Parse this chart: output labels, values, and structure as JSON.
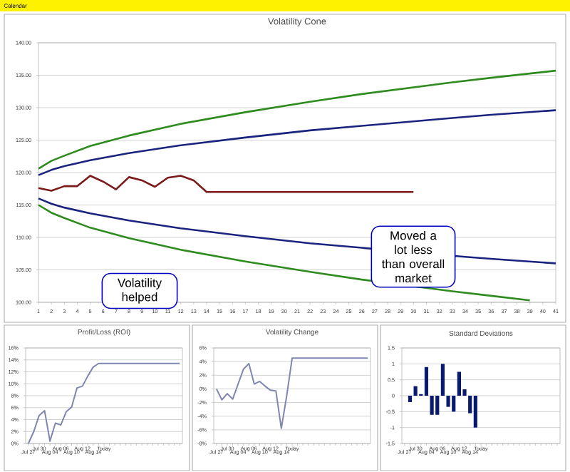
{
  "chart_data": [
    {
      "type": "line",
      "title": "Volatility Cone",
      "annotations": [
        "Calendar"
      ],
      "xlim": [
        1,
        41
      ],
      "xticks": [
        1,
        2,
        3,
        4,
        5,
        6,
        7,
        8,
        9,
        10,
        11,
        12,
        13,
        14,
        15,
        16,
        17,
        18,
        19,
        20,
        21,
        22,
        23,
        24,
        25,
        26,
        27,
        28,
        29,
        30,
        31,
        32,
        33,
        34,
        35,
        36,
        37,
        38,
        39,
        40,
        41
      ],
      "ylim": [
        100,
        140
      ],
      "yticks": [
        {
          "value": 100,
          "label": "100.00"
        },
        {
          "value": 105,
          "label": "105.00"
        },
        {
          "value": 110,
          "label": "110.00"
        },
        {
          "value": 115,
          "label": "115.00"
        },
        {
          "value": 120,
          "label": "120.00"
        },
        {
          "value": 125,
          "label": "125.00"
        },
        {
          "value": 130,
          "label": "130.00"
        },
        {
          "value": 135,
          "label": "135.00"
        },
        {
          "value": 140,
          "label": "140.00"
        }
      ],
      "grid": "y",
      "series": [
        {
          "color": "#2e8b1e",
          "x": [
            1,
            2,
            3,
            5,
            8,
            12,
            17,
            22,
            26,
            33,
            36,
            41
          ],
          "values": [
            120.6,
            121.8,
            122.6,
            124.1,
            125.7,
            127.5,
            129.3,
            130.9,
            132.1,
            133.9,
            134.6,
            135.7
          ]
        },
        {
          "color": "#1a237e",
          "x": [
            1,
            2,
            3,
            5,
            8,
            12,
            17,
            22,
            26,
            33,
            36,
            41
          ],
          "values": [
            119.6,
            120.4,
            121.0,
            121.9,
            123.0,
            124.2,
            125.4,
            126.5,
            127.2,
            128.4,
            128.9,
            129.6
          ]
        },
        {
          "color": "#7b1a1a",
          "x": [
            1,
            2,
            3,
            4,
            5,
            6,
            7,
            8,
            9,
            10,
            11,
            12,
            13,
            14,
            30
          ],
          "values": [
            117.6,
            117.2,
            117.9,
            117.9,
            119.5,
            118.6,
            117.4,
            119.3,
            118.8,
            117.8,
            119.2,
            119.5,
            118.8,
            117.0,
            117.0
          ]
        },
        {
          "color": "#1a237e",
          "x": [
            1,
            2,
            3,
            5,
            8,
            12,
            17,
            22,
            26,
            34,
            36,
            41
          ],
          "values": [
            116.0,
            115.2,
            114.6,
            113.7,
            112.6,
            111.4,
            110.2,
            109.1,
            108.4,
            107.0,
            106.7,
            106.0
          ]
        },
        {
          "color": "#2e8b1e",
          "x": [
            1,
            2,
            3,
            5,
            8,
            12,
            17,
            22,
            26,
            33,
            36,
            39
          ],
          "values": [
            115.0,
            113.8,
            113.0,
            111.5,
            109.9,
            108.1,
            106.3,
            104.7,
            103.5,
            101.7,
            101.0,
            100.3
          ]
        }
      ]
    },
    {
      "type": "line",
      "title": "Profit/Loss (ROI)",
      "annotations": [
        "Volatility helped"
      ],
      "categories": [
        "Jul 27",
        null,
        "Jul 30",
        null,
        "Aug 04",
        null,
        "Aug 06",
        null,
        "Aug 10",
        null,
        "Aug 12",
        null,
        "Aug 14",
        null,
        "Today",
        null,
        null,
        null,
        null,
        null,
        null,
        null,
        null,
        null,
        null,
        null,
        null,
        null,
        null
      ],
      "ylim": [
        0,
        16
      ],
      "yticks": [
        {
          "value": 0,
          "label": "0%"
        },
        {
          "value": 2,
          "label": "2%"
        },
        {
          "value": 4,
          "label": "4%"
        },
        {
          "value": 6,
          "label": "6%"
        },
        {
          "value": 8,
          "label": "8%"
        },
        {
          "value": 10,
          "label": "10%"
        },
        {
          "value": 12,
          "label": "12%"
        },
        {
          "value": 14,
          "label": "14%"
        },
        {
          "value": 16,
          "label": "16%"
        }
      ],
      "grid": "y",
      "series": [
        {
          "color": "#7f86b0",
          "values": [
            0,
            2.0,
            4.7,
            5.5,
            0.4,
            3.4,
            3.1,
            5.3,
            6.1,
            9.3,
            9.6,
            11.3,
            12.8,
            13.4,
            13.4,
            13.4,
            13.4,
            13.4,
            13.4,
            13.4,
            13.4,
            13.4,
            13.4,
            13.4,
            13.4,
            13.4,
            13.4,
            13.4,
            13.4
          ]
        }
      ]
    },
    {
      "type": "line",
      "title": "Volatility Change",
      "categories": [
        "Jul 27",
        null,
        "Jul 30",
        null,
        "Aug 04",
        null,
        "Aug 06",
        null,
        "Aug 10",
        null,
        "Aug 12",
        null,
        "Aug 14",
        null,
        "Today",
        null,
        null,
        null,
        null,
        null,
        null,
        null,
        null,
        null,
        null,
        null,
        null,
        null,
        null
      ],
      "ylim": [
        -8,
        6
      ],
      "yticks": [
        {
          "value": -8,
          "label": "-8%"
        },
        {
          "value": -6,
          "label": "-6%"
        },
        {
          "value": -4,
          "label": "-4%"
        },
        {
          "value": -2,
          "label": "-2%"
        },
        {
          "value": 0,
          "label": "0%"
        },
        {
          "value": 2,
          "label": "2%"
        },
        {
          "value": 4,
          "label": "4%"
        },
        {
          "value": 6,
          "label": "6%"
        }
      ],
      "grid": "y",
      "series": [
        {
          "color": "#7f86b0",
          "values": [
            0,
            -1.6,
            -0.7,
            -1.5,
            0.7,
            2.9,
            3.7,
            0.7,
            1.1,
            0.4,
            -0.2,
            -0.3,
            -5.8,
            -1.0,
            4.5,
            4.5,
            4.5,
            4.5,
            4.5,
            4.5,
            4.5,
            4.5,
            4.5,
            4.5,
            4.5,
            4.5,
            4.5,
            4.5,
            4.5
          ]
        }
      ]
    },
    {
      "type": "bar",
      "title": "Standard Deviations",
      "annotations": [
        "Moved a lot less than overall market"
      ],
      "categories": [
        "Jul 27",
        null,
        "Jul 30",
        null,
        "Aug 04",
        null,
        "Aug 06",
        null,
        "Aug 10",
        null,
        "Aug 12",
        null,
        "Aug 14",
        null,
        "Today",
        null,
        null,
        null,
        null,
        null,
        null,
        null,
        null,
        null,
        null,
        null,
        null,
        null,
        null
      ],
      "ylim": [
        -1.5,
        1.5
      ],
      "yticks": [
        -1.5,
        -1,
        -0.5,
        0,
        0.5,
        1,
        1.5
      ],
      "grid": "y",
      "series": [
        {
          "color": "#0a1a6e",
          "values": [
            null,
            -0.2,
            0.3,
            0.05,
            0.9,
            -0.6,
            -0.6,
            1.0,
            -0.35,
            -0.5,
            0.75,
            0.2,
            -0.55,
            -1.0,
            null,
            null,
            null,
            null,
            null,
            null,
            null,
            null,
            null,
            null,
            null,
            null,
            null,
            null,
            null
          ]
        }
      ]
    }
  ]
}
